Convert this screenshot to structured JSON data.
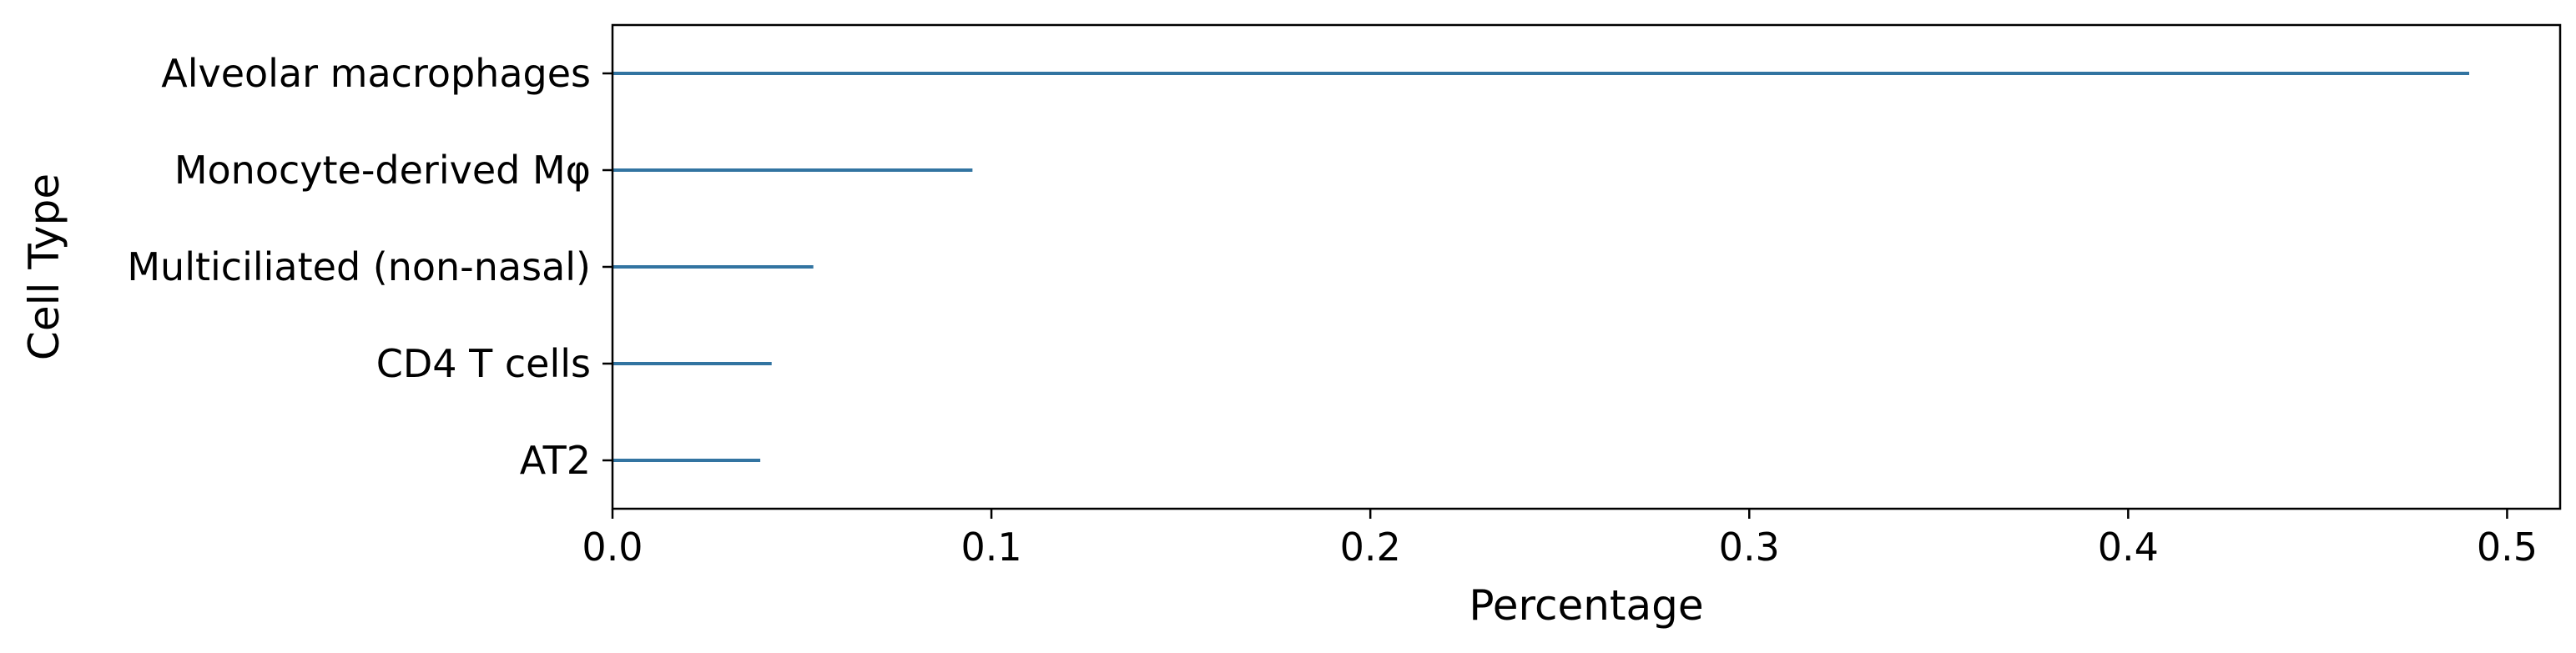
{
  "chart_data": {
    "type": "bar",
    "orientation": "horizontal",
    "categories": [
      "Alveolar macrophages",
      "Monocyte-derived Mφ",
      "Multiciliated (non-nasal)",
      "CD4 T cells",
      "AT2"
    ],
    "values": [
      0.49,
      0.095,
      0.053,
      0.042,
      0.039
    ],
    "xlabel": "Percentage",
    "ylabel": "Cell Type",
    "xlim": [
      0,
      0.514
    ],
    "xticks": [
      0.0,
      0.1,
      0.2,
      0.3,
      0.4,
      0.5
    ],
    "xtick_labels": [
      "0.0",
      "0.1",
      "0.2",
      "0.3",
      "0.4",
      "0.5"
    ],
    "grid": false,
    "bar_color": "#3274a1"
  }
}
